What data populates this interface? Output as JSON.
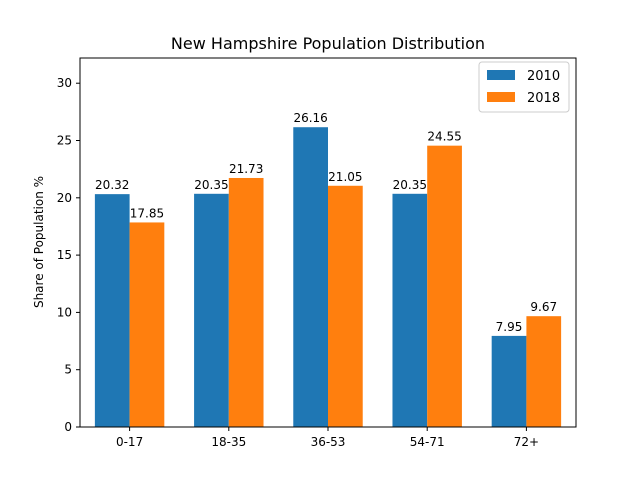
{
  "chart_data": {
    "type": "bar",
    "title": "New Hampshire Population Distribution",
    "xlabel": "",
    "ylabel": "Share of Population %",
    "categories": [
      "0-17",
      "18-35",
      "36-53",
      "54-71",
      "72+"
    ],
    "series": [
      {
        "name": "2010",
        "color": "#1f77b4",
        "values": [
          20.32,
          20.35,
          26.16,
          20.35,
          7.95
        ]
      },
      {
        "name": "2018",
        "color": "#ff7f0e",
        "values": [
          17.85,
          21.73,
          21.05,
          24.55,
          9.67
        ]
      }
    ],
    "ylim": [
      0,
      32.2
    ],
    "yticks": [
      0,
      5,
      10,
      15,
      20,
      25,
      30
    ],
    "grid": false,
    "legend_position": "top-right"
  }
}
